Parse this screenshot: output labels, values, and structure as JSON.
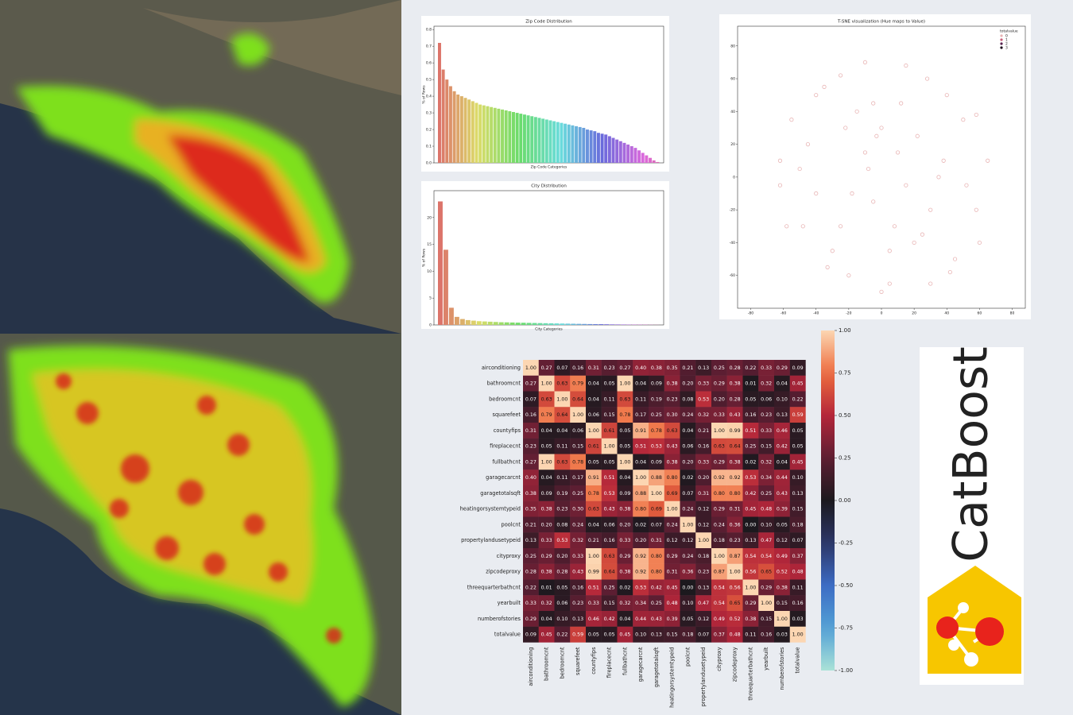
{
  "chart_data": [
    {
      "type": "bar",
      "title": "Zip Code Distribution",
      "xlabel": "Zip Code Categories",
      "ylabel": "% of Rows",
      "palette": "husl",
      "values": [
        0.72,
        0.56,
        0.5,
        0.46,
        0.43,
        0.41,
        0.4,
        0.39,
        0.38,
        0.37,
        0.36,
        0.35,
        0.345,
        0.34,
        0.335,
        0.33,
        0.325,
        0.32,
        0.315,
        0.31,
        0.305,
        0.3,
        0.295,
        0.29,
        0.285,
        0.28,
        0.275,
        0.27,
        0.265,
        0.26,
        0.255,
        0.25,
        0.245,
        0.24,
        0.235,
        0.23,
        0.225,
        0.22,
        0.215,
        0.21,
        0.2,
        0.195,
        0.19,
        0.18,
        0.175,
        0.17,
        0.16,
        0.15,
        0.14,
        0.13,
        0.12,
        0.11,
        0.1,
        0.09,
        0.075,
        0.06,
        0.045,
        0.03,
        0.015,
        0.005
      ],
      "ylim": [
        0,
        0.82
      ],
      "yticks": [
        {
          "value": 0,
          "label": "0.0"
        },
        0.1,
        0.2,
        0.3,
        0.4,
        0.5,
        0.6,
        0.7,
        0.8
      ]
    },
    {
      "type": "bar",
      "title": "City Distribution",
      "xlabel": "City Categories",
      "ylabel": "% of Rows",
      "palette": "husl",
      "values": [
        23,
        14,
        3.2,
        1.5,
        1.1,
        0.9,
        0.8,
        0.7,
        0.65,
        0.6,
        0.55,
        0.5,
        0.48,
        0.45,
        0.42,
        0.4,
        0.38,
        0.36,
        0.34,
        0.32,
        0.3,
        0.28,
        0.26,
        0.24,
        0.22,
        0.2,
        0.18,
        0.16,
        0.15,
        0.14,
        0.12,
        0.1,
        0.09,
        0.08,
        0.07,
        0.06,
        0.05,
        0.04,
        0.03,
        0.02
      ],
      "ylim": [
        0,
        25
      ],
      "yticks": [
        0,
        5,
        10,
        15,
        20
      ]
    },
    {
      "type": "scatter",
      "title": "T-SNE visualization (Hue maps to Value)",
      "legend_title": "totalvalue",
      "legend": "upper right",
      "xlim": [
        -88,
        88
      ],
      "ylim": [
        -80,
        92
      ],
      "xticks": [
        -80,
        -60,
        -40,
        -20,
        0,
        20,
        40,
        60,
        80
      ],
      "yticks": [
        -60,
        -40,
        -20,
        0,
        20,
        40,
        60,
        80
      ],
      "series": [
        {
          "name": "0",
          "color": "#e8b4b4",
          "x": [
            -62,
            -55,
            -48,
            -40,
            -33,
            -25,
            -18,
            -10,
            -3,
            5,
            12,
            20,
            28,
            35,
            42,
            50,
            58,
            65,
            -58,
            -45,
            -30,
            -15,
            0,
            15,
            30,
            45,
            58,
            -50,
            -35,
            -20,
            -5,
            10,
            25,
            40,
            52,
            -40,
            -22,
            -8,
            8,
            22,
            38,
            -25,
            -5,
            15,
            30,
            -10,
            5,
            -62,
            60,
            0
          ],
          "y": [
            10,
            35,
            -30,
            50,
            -55,
            62,
            -10,
            70,
            25,
            -65,
            45,
            -40,
            60,
            0,
            -58,
            35,
            -20,
            10,
            -30,
            20,
            -45,
            40,
            -70,
            68,
            -20,
            -50,
            38,
            5,
            55,
            -60,
            -15,
            15,
            -35,
            50,
            -5,
            -10,
            30,
            5,
            -30,
            25,
            10,
            -30,
            45,
            -5,
            -65,
            15,
            -45,
            -5,
            -40,
            30
          ]
        },
        {
          "name": "1",
          "color": "#c9607a",
          "x": [],
          "y": []
        },
        {
          "name": "2",
          "color": "#5a2450",
          "x": [],
          "y": []
        },
        {
          "name": "3",
          "color": "#1a0a1a",
          "x": [],
          "y": []
        }
      ]
    },
    {
      "type": "heatmap",
      "labels": [
        "airconditioning",
        "bathroomcnt",
        "bedroomcnt",
        "squarefeet",
        "countyfips",
        "fireplacecnt",
        "fullbathcnt",
        "garagecarcnt",
        "garagetotalsqft",
        "heatingorsystemtypeid",
        "poolcnt",
        "propertylandusetypeid",
        "cityproxy",
        "zipcodeproxy",
        "threequarterbathcnt",
        "yearbuilt",
        "numberofstories",
        "totalvalue"
      ],
      "vlim": [
        -1,
        1
      ],
      "colorbar_ticks": [
        {
          "value": 1,
          "label": "1.00"
        },
        0.75,
        {
          "value": 0.5,
          "label": "0.50"
        },
        0.25,
        {
          "value": 0,
          "label": "0.00"
        },
        -0.25,
        {
          "value": -0.5,
          "label": "-0.50"
        },
        -0.75,
        {
          "value": -1,
          "label": "-1.00"
        }
      ],
      "values": [
        [
          1,
          0.27,
          0.07,
          0.16,
          0.31,
          0.23,
          0.27,
          0.4,
          0.38,
          0.35,
          0.21,
          0.13,
          0.25,
          0.28,
          0.22,
          0.33,
          0.29,
          0.09
        ],
        [
          0.27,
          1,
          0.63,
          0.79,
          0.04,
          0.05,
          1,
          0.04,
          0.09,
          0.38,
          0.2,
          0.33,
          0.29,
          0.38,
          0.01,
          0.32,
          0.04,
          0.45
        ],
        [
          0.07,
          0.63,
          1,
          0.64,
          0.04,
          0.11,
          0.63,
          0.11,
          0.19,
          0.23,
          0.08,
          0.53,
          0.2,
          0.28,
          0.05,
          0.06,
          0.1,
          0.22
        ],
        [
          0.16,
          0.79,
          0.64,
          1,
          0.06,
          0.15,
          0.78,
          0.17,
          0.25,
          0.3,
          0.24,
          0.32,
          0.33,
          0.43,
          0.16,
          0.23,
          0.13,
          0.59
        ],
        [
          0.31,
          0.04,
          0.04,
          0.06,
          1,
          0.61,
          0.05,
          0.91,
          0.78,
          0.63,
          0.04,
          0.21,
          1,
          0.99,
          0.51,
          0.33,
          0.46,
          0.05
        ],
        [
          0.23,
          0.05,
          0.11,
          0.15,
          0.61,
          1,
          0.05,
          0.51,
          0.53,
          0.43,
          0.06,
          0.16,
          0.63,
          0.64,
          0.25,
          0.15,
          0.42,
          0.05
        ],
        [
          0.27,
          1,
          0.63,
          0.78,
          0.05,
          0.05,
          1,
          0.04,
          0.09,
          0.38,
          0.2,
          0.33,
          0.29,
          0.38,
          0.02,
          0.32,
          0.04,
          0.45
        ],
        [
          0.4,
          0.04,
          0.11,
          0.17,
          0.91,
          0.51,
          0.04,
          1,
          0.88,
          0.8,
          0.02,
          0.2,
          0.92,
          0.92,
          0.53,
          0.34,
          0.44,
          0.1
        ],
        [
          0.38,
          0.09,
          0.19,
          0.25,
          0.78,
          0.53,
          0.09,
          0.88,
          1,
          0.69,
          0.07,
          0.31,
          0.8,
          0.8,
          0.42,
          0.25,
          0.43,
          0.13
        ],
        [
          0.35,
          0.38,
          0.23,
          0.3,
          0.63,
          0.43,
          0.38,
          0.8,
          0.69,
          1,
          0.24,
          0.12,
          0.29,
          0.31,
          0.45,
          0.48,
          0.39,
          0.15
        ],
        [
          0.21,
          0.2,
          0.08,
          0.24,
          0.04,
          0.06,
          0.2,
          0.02,
          0.07,
          0.24,
          1,
          0.12,
          0.24,
          0.36,
          0,
          0.1,
          0.05,
          0.18
        ],
        [
          0.13,
          0.33,
          0.53,
          0.32,
          0.21,
          0.16,
          0.33,
          0.2,
          0.31,
          0.12,
          0.12,
          1,
          0.18,
          0.23,
          0.13,
          0.47,
          0.12,
          0.07
        ],
        [
          0.25,
          0.29,
          0.2,
          0.33,
          1,
          0.63,
          0.29,
          0.92,
          0.8,
          0.29,
          0.24,
          0.18,
          1,
          0.87,
          0.54,
          0.54,
          0.49,
          0.37
        ],
        [
          0.28,
          0.38,
          0.28,
          0.43,
          0.99,
          0.64,
          0.38,
          0.92,
          0.8,
          0.31,
          0.36,
          0.23,
          0.87,
          1,
          0.56,
          0.65,
          0.52,
          0.48
        ],
        [
          0.22,
          0.01,
          0.05,
          0.16,
          0.51,
          0.25,
          0.02,
          0.53,
          0.42,
          0.45,
          0,
          0.13,
          0.54,
          0.56,
          1,
          0.29,
          0.38,
          0.11
        ],
        [
          0.33,
          0.32,
          0.06,
          0.23,
          0.33,
          0.15,
          0.32,
          0.34,
          0.25,
          0.48,
          0.1,
          0.47,
          0.54,
          0.65,
          0.29,
          1,
          0.15,
          0.16
        ],
        [
          0.29,
          0.04,
          0.1,
          0.13,
          0.46,
          0.42,
          0.04,
          0.44,
          0.43,
          0.39,
          0.05,
          0.12,
          0.49,
          0.52,
          0.38,
          0.15,
          1,
          0.03
        ],
        [
          0.09,
          0.45,
          0.22,
          0.59,
          0.05,
          0.05,
          0.45,
          0.1,
          0.13,
          0.15,
          0.18,
          0.07,
          0.37,
          0.48,
          0.11,
          0.16,
          0.03,
          1
        ]
      ],
      "value_labels": [
        [
          "1.00",
          "0.27",
          "0.07",
          "0.16",
          "0.31",
          "0.23",
          "0.27",
          "0.40",
          "0.38",
          "0.35",
          "0.21",
          "0.13",
          "0.25",
          "0.28",
          "0.22",
          "0.33",
          "0.29",
          "0.09"
        ],
        [
          "0.27",
          "1.00",
          "0.63",
          "0.79",
          "0.04",
          "0.05",
          "1.00",
          "0.04",
          "0.09",
          "0.38",
          "0.20",
          "0.33",
          "0.29",
          "0.38",
          "0.01",
          "0.32",
          "0.04",
          "0.45"
        ],
        [
          "0.07",
          "0.63",
          "1.00",
          "0.64",
          "0.04",
          "0.11",
          "0.63",
          "0.11",
          "0.19",
          "0.23",
          "0.08",
          "0.53",
          "0.20",
          "0.28",
          "0.05",
          "0.06",
          "0.10",
          "0.22"
        ],
        [
          "0.16",
          "0.79",
          "0.64",
          "1.00",
          "0.06",
          "0.15",
          "0.78",
          "0.17",
          "0.25",
          "0.30",
          "0.24",
          "0.32",
          "0.33",
          "0.43",
          "0.16",
          "0.23",
          "0.13",
          "0.59"
        ],
        [
          "0.31",
          "0.04",
          "0.04",
          "0.06",
          "1.00",
          "0.61",
          "0.05",
          "0.91",
          "0.78",
          "0.63",
          "0.04",
          "0.21",
          "1.00",
          "0.99",
          "0.51",
          "0.33",
          "0.46",
          "0.05"
        ],
        [
          "0.23",
          "0.05",
          "0.11",
          "0.15",
          "0.61",
          "1.00",
          "0.05",
          "0.51",
          "0.53",
          "0.43",
          "0.06",
          "0.16",
          "0.63",
          "0.64",
          "0.25",
          "0.15",
          "0.42",
          "0.05"
        ],
        [
          "0.27",
          "1.00",
          "0.63",
          "0.78",
          "0.05",
          "0.05",
          "1.00",
          "0.04",
          "0.09",
          "0.38",
          "0.20",
          "0.33",
          "0.29",
          "0.38",
          "0.02",
          "0.32",
          "0.04",
          "0.45"
        ],
        [
          "0.40",
          "0.04",
          "0.11",
          "0.17",
          "0.91",
          "0.51",
          "0.04",
          "1.00",
          "0.88",
          "0.80",
          "0.02",
          "0.20",
          "0.92",
          "0.92",
          "0.53",
          "0.34",
          "0.44",
          "0.10"
        ],
        [
          "0.38",
          "0.09",
          "0.19",
          "0.25",
          "0.78",
          "0.53",
          "0.09",
          "0.88",
          "1.00",
          "0.69",
          "0.07",
          "0.31",
          "0.80",
          "0.80",
          "0.42",
          "0.25",
          "0.43",
          "0.13"
        ],
        [
          "0.35",
          "0.38",
          "0.23",
          "0.30",
          "0.63",
          "0.43",
          "0.38",
          "0.80",
          "0.69",
          "1.00",
          "0.24",
          "0.12",
          "0.29",
          "0.31",
          "0.45",
          "0.48",
          "0.39",
          "0.15"
        ],
        [
          "0.21",
          "0.20",
          "0.08",
          "0.24",
          "0.04",
          "0.06",
          "0.20",
          "0.02",
          "0.07",
          "0.24",
          "1.00",
          "0.12",
          "0.24",
          "0.36",
          "0.00",
          "0.10",
          "0.05",
          "0.18"
        ],
        [
          "0.13",
          "0.33",
          "0.53",
          "0.32",
          "0.21",
          "0.16",
          "0.33",
          "0.20",
          "0.31",
          "0.12",
          "0.12",
          "1.00",
          "0.18",
          "0.23",
          "0.13",
          "0.47",
          "0.12",
          "0.07"
        ],
        [
          "0.25",
          "0.29",
          "0.20",
          "0.33",
          "1.00",
          "0.63",
          "0.29",
          "0.92",
          "0.80",
          "0.29",
          "0.24",
          "0.18",
          "1.00",
          "0.87",
          "0.54",
          "0.54",
          "0.49",
          "0.37"
        ],
        [
          "0.28",
          "0.38",
          "0.28",
          "0.43",
          "0.99",
          "0.64",
          "0.38",
          "0.92",
          "0.80",
          "0.31",
          "0.36",
          "0.23",
          "0.87",
          "1.00",
          "0.56",
          "0.65",
          "0.52",
          "0.48"
        ],
        [
          "0.22",
          "0.01",
          "0.05",
          "0.16",
          "0.51",
          "0.25",
          "0.02",
          "0.53",
          "0.42",
          "0.45",
          "0.00",
          "0.13",
          "0.54",
          "0.56",
          "1.00",
          "0.29",
          "0.38",
          "0.11"
        ],
        [
          "0.33",
          "0.32",
          "0.06",
          "0.23",
          "0.33",
          "0.15",
          "0.32",
          "0.34",
          "0.25",
          "0.48",
          "0.10",
          "0.47",
          "0.54",
          "0.65",
          "0.29",
          "1.00",
          "0.15",
          "0.16"
        ],
        [
          "0.29",
          "0.04",
          "0.10",
          "0.13",
          "0.46",
          "0.42",
          "0.04",
          "0.44",
          "0.43",
          "0.39",
          "0.05",
          "0.12",
          "0.49",
          "0.52",
          "0.38",
          "0.15",
          "1.00",
          "0.03"
        ],
        [
          "0.09",
          "0.45",
          "0.22",
          "0.59",
          "0.05",
          "0.05",
          "0.45",
          "0.10",
          "0.13",
          "0.15",
          "0.18",
          "0.07",
          "0.37",
          "0.48",
          "0.11",
          "0.16",
          "0.03",
          "1.00"
        ]
      ]
    }
  ],
  "logo": {
    "text": "CatBoost"
  }
}
